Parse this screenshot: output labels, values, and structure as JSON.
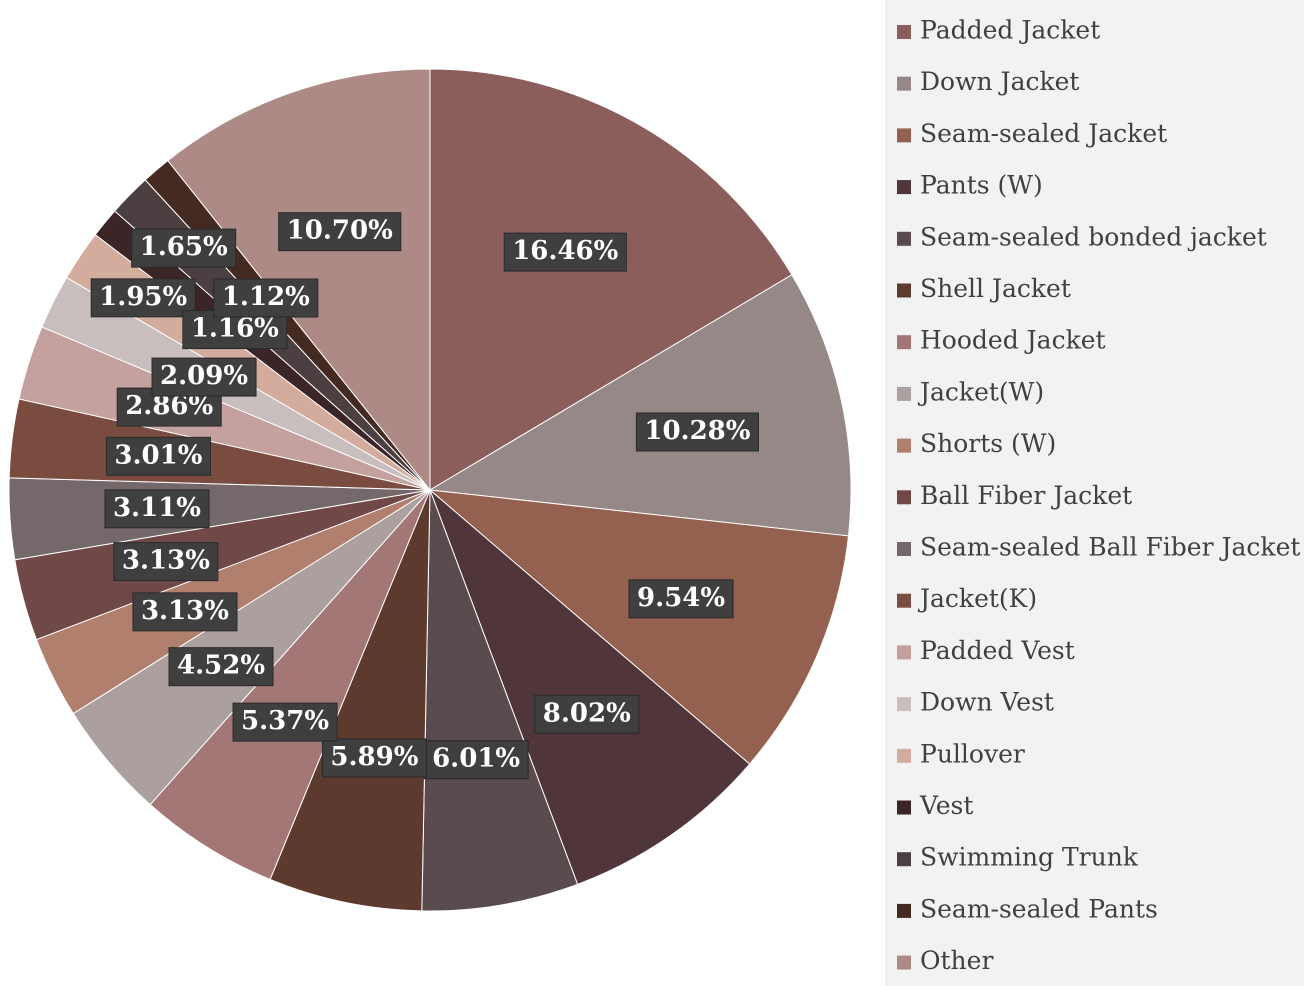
{
  "chart_data": {
    "type": "pie",
    "categories": [
      "Padded Jacket",
      "Down Jacket",
      "Seam-sealed Jacket",
      "Pants (W)",
      "Seam-sealed bonded jacket",
      "Shell Jacket",
      "Hooded Jacket",
      "Jacket(W)",
      "Shorts (W)",
      "Ball Fiber Jacket",
      "Seam-sealed Ball Fiber Jacket",
      "Jacket(K)",
      "Padded Vest",
      "Down Vest",
      "Pullover",
      "Vest",
      "Swimming Trunk",
      "Seam-sealed Pants",
      "Other"
    ],
    "values": [
      16.46,
      10.28,
      9.54,
      8.02,
      6.01,
      5.89,
      5.37,
      4.52,
      3.13,
      3.13,
      3.11,
      3.01,
      2.86,
      2.09,
      1.95,
      1.16,
      1.65,
      1.12,
      10.7
    ],
    "value_labels": [
      "16.46%",
      "10.28%",
      "9.54%",
      "8.02%",
      "6.01%",
      "5.89%",
      "5.37%",
      "4.52%",
      "3.13%",
      "3.13%",
      "3.11%",
      "3.01%",
      "2.86%",
      "2.09%",
      "1.95%",
      "1.16%",
      "1.65%",
      "1.12%",
      "10.70%"
    ],
    "colors": [
      "#8b5e5c",
      "#958886",
      "#946150",
      "#50363a",
      "#5a4c4e",
      "#5e3a2e",
      "#a27776",
      "#aba09f",
      "#b07f6d",
      "#714848",
      "#75686a",
      "#7a4c3f",
      "#c4a09f",
      "#c9bebe",
      "#d3ac9e",
      "#3b2527",
      "#4b3f42",
      "#442a20",
      "#ae8a87"
    ],
    "legend": "right"
  }
}
